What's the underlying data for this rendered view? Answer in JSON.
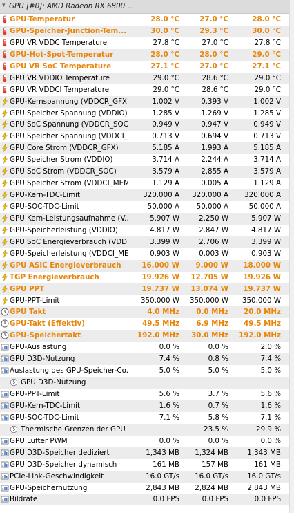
{
  "header": {
    "title": "GPU [#0]: AMD Radeon RX 6800 ..."
  },
  "rows": [
    {
      "icon": "thermometer-icon",
      "label": "GPU-Temperatur",
      "v1": "28.0 °C",
      "v2": "27.0 °C",
      "v3": "28.0 °C",
      "hl": true
    },
    {
      "icon": "thermometer-icon",
      "label": "GPU-Speicher-Junction-Tem...",
      "v1": "30.0 °C",
      "v2": "29.3 °C",
      "v3": "30.0 °C",
      "hl": true
    },
    {
      "icon": "thermometer-icon",
      "label": "GPU VR VDDC Temperature",
      "v1": "27.8 °C",
      "v2": "27.0 °C",
      "v3": "27.8 °C",
      "hl": false
    },
    {
      "icon": "thermometer-icon",
      "label": "GPU-Hot-Spot-Temperatur",
      "v1": "28.0 °C",
      "v2": "28.0 °C",
      "v3": "29.0 °C",
      "hl": true
    },
    {
      "icon": "thermometer-icon",
      "label": "GPU VR SoC Temperature",
      "v1": "27.1 °C",
      "v2": "27.0 °C",
      "v3": "27.1 °C",
      "hl": true
    },
    {
      "icon": "thermometer-icon",
      "label": "GPU VR VDDIO Temperature",
      "v1": "29.0 °C",
      "v2": "28.6 °C",
      "v3": "29.0 °C",
      "hl": false
    },
    {
      "icon": "thermometer-icon",
      "label": "GPU VR VDDCI Temperature",
      "v1": "29.0 °C",
      "v2": "28.6 °C",
      "v3": "29.0 °C",
      "hl": false
    },
    {
      "icon": "lightning-icon",
      "label": "GPU-Kernspannung (VDDCR_GFX)",
      "v1": "1.002 V",
      "v2": "0.393 V",
      "v3": "1.002 V",
      "hl": false
    },
    {
      "icon": "lightning-icon",
      "label": "GPU Speicher Spannung (VDDIO)",
      "v1": "1.285 V",
      "v2": "1.269 V",
      "v3": "1.285 V",
      "hl": false
    },
    {
      "icon": "lightning-icon",
      "label": "GPU SoC Spannung (VDDCR_SOC)",
      "v1": "0.949 V",
      "v2": "0.947 V",
      "v3": "0.949 V",
      "hl": false
    },
    {
      "icon": "lightning-icon",
      "label": "GPU Speicher Spannung (VDDCI_...",
      "v1": "0.713 V",
      "v2": "0.694 V",
      "v3": "0.713 V",
      "hl": false
    },
    {
      "icon": "lightning-icon",
      "label": "GPU Core Strom (VDDCR_GFX)",
      "v1": "5.185 A",
      "v2": "1.993 A",
      "v3": "5.185 A",
      "hl": false
    },
    {
      "icon": "lightning-icon",
      "label": "GPU Speicher Strom (VDDIO)",
      "v1": "3.714 A",
      "v2": "2.244 A",
      "v3": "3.714 A",
      "hl": false
    },
    {
      "icon": "lightning-icon",
      "label": "GPU SoC Strom (VDDCR_SOC)",
      "v1": "3.579 A",
      "v2": "2.855 A",
      "v3": "3.579 A",
      "hl": false
    },
    {
      "icon": "lightning-icon",
      "label": "GPU Speicher Strom (VDDCI_MEM)",
      "v1": "1.129 A",
      "v2": "0.005 A",
      "v3": "1.129 A",
      "hl": false
    },
    {
      "icon": "lightning-icon",
      "label": "GPU-Kern-TDC-Limit",
      "v1": "320.000 A",
      "v2": "320.000 A",
      "v3": "320.000 A",
      "hl": false
    },
    {
      "icon": "lightning-icon",
      "label": "GPU-SOC-TDC-Limit",
      "v1": "50.000 A",
      "v2": "50.000 A",
      "v3": "50.000 A",
      "hl": false
    },
    {
      "icon": "lightning-icon",
      "label": "GPU Kern-Leistungsaufnahme (V...",
      "v1": "5.907 W",
      "v2": "2.250 W",
      "v3": "5.907 W",
      "hl": false
    },
    {
      "icon": "lightning-icon",
      "label": "GPU-Speicherleistung (VDDIO)",
      "v1": "4.817 W",
      "v2": "2.847 W",
      "v3": "4.817 W",
      "hl": false
    },
    {
      "icon": "lightning-icon",
      "label": "GPU SoC Energieverbrauch (VDD...",
      "v1": "3.399 W",
      "v2": "2.706 W",
      "v3": "3.399 W",
      "hl": false
    },
    {
      "icon": "lightning-icon",
      "label": "GPU-Speicherleistung (VDDCI_MEM)",
      "v1": "0.903 W",
      "v2": "0.003 W",
      "v3": "0.903 W",
      "hl": false
    },
    {
      "icon": "lightning-icon",
      "label": "GPU ASIC Energieverbrauch",
      "v1": "16.000 W",
      "v2": "9.000 W",
      "v3": "18.000 W",
      "hl": true
    },
    {
      "icon": "lightning-icon",
      "label": "TGP Energieverbrauch",
      "v1": "19.926 W",
      "v2": "12.705 W",
      "v3": "19.926 W",
      "hl": true
    },
    {
      "icon": "lightning-icon",
      "label": "GPU PPT",
      "v1": "19.737 W",
      "v2": "13.074 W",
      "v3": "19.737 W",
      "hl": true
    },
    {
      "icon": "lightning-icon",
      "label": "GPU-PPT-Limit",
      "v1": "350.000 W",
      "v2": "350.000 W",
      "v3": "350.000 W",
      "hl": false
    },
    {
      "icon": "clock-icon",
      "label": "GPU Takt",
      "v1": "4.0 MHz",
      "v2": "0.0 MHz",
      "v3": "20.0 MHz",
      "hl": true
    },
    {
      "icon": "clock-icon",
      "label": "GPU-Takt (Effektiv)",
      "v1": "49.5 MHz",
      "v2": "6.9 MHz",
      "v3": "49.5 MHz",
      "hl": true
    },
    {
      "icon": "clock-icon",
      "label": "GPU-Speichertakt",
      "v1": "192.0 MHz",
      "v2": "30.0 MHz",
      "v3": "192.0 MHz",
      "hl": true
    },
    {
      "icon": "usage-icon",
      "label": "GPU-Auslastung",
      "v1": "0.0 %",
      "v2": "0.0 %",
      "v3": "2.0 %",
      "hl": false
    },
    {
      "icon": "usage-icon",
      "label": "GPU D3D-Nutzung",
      "v1": "7.4 %",
      "v2": "0.8 %",
      "v3": "7.4 %",
      "hl": false
    },
    {
      "icon": "usage-icon",
      "label": "Auslastung des GPU-Speicher-Co...",
      "v1": "5.0 %",
      "v2": "5.0 %",
      "v3": "5.0 %",
      "hl": false
    },
    {
      "icon": "expand-icon",
      "label": "GPU D3D-Nutzung",
      "v1": "",
      "v2": "",
      "v3": "",
      "hl": false,
      "sub": true
    },
    {
      "icon": "usage-icon",
      "label": "GPU-PPT-Limit",
      "v1": "5.6 %",
      "v2": "3.7 %",
      "v3": "5.6 %",
      "hl": false
    },
    {
      "icon": "usage-icon",
      "label": "GPU-Kern-TDC-Limit",
      "v1": "1.6 %",
      "v2": "0.7 %",
      "v3": "1.6 %",
      "hl": false
    },
    {
      "icon": "usage-icon",
      "label": "GPU-SOC-TDC-Limit",
      "v1": "7.1 %",
      "v2": "5.8 %",
      "v3": "7.1 %",
      "hl": false
    },
    {
      "icon": "expand-icon",
      "label": "Thermische Grenzen der GPU",
      "v1": "",
      "v2": "23.5 %",
      "v3": "29.9 %",
      "hl": false,
      "sub": true
    },
    {
      "icon": "usage-icon",
      "label": "GPU Lüfter PWM",
      "v1": "0.0 %",
      "v2": "0.0 %",
      "v3": "0.0 %",
      "hl": false
    },
    {
      "icon": "usage-icon",
      "label": "GPU D3D-Speicher dediziert",
      "v1": "1,343 MB",
      "v2": "1,324 MB",
      "v3": "1,343 MB",
      "hl": false
    },
    {
      "icon": "usage-icon",
      "label": "GPU D3D-Speicher dynamisch",
      "v1": "161 MB",
      "v2": "157 MB",
      "v3": "161 MB",
      "hl": false
    },
    {
      "icon": "usage-icon",
      "label": "PCIe-Link-Geschwindigkeit",
      "v1": "16.0 GT/s",
      "v2": "16.0 GT/s",
      "v3": "16.0 GT/s",
      "hl": false
    },
    {
      "icon": "usage-icon",
      "label": "GPU-Speichernutzung",
      "v1": "2,843 MB",
      "v2": "2,824 MB",
      "v3": "2,843 MB",
      "hl": false
    },
    {
      "icon": "usage-icon",
      "label": "Bildrate",
      "v1": "0.0 FPS",
      "v2": "0.0 FPS",
      "v3": "0.0 FPS",
      "hl": false
    }
  ]
}
